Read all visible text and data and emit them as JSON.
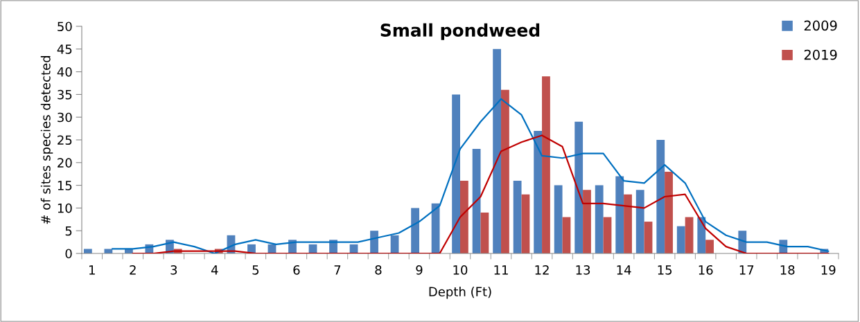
{
  "chart_data": {
    "type": "bar",
    "title": "Small pondweed",
    "xlabel": "Depth (Ft)",
    "ylabel": "# of sites species detected",
    "categories": [
      "1",
      null,
      "2",
      null,
      "3",
      null,
      "4",
      null,
      "5",
      null,
      "6",
      null,
      "7",
      null,
      "8",
      null,
      "9",
      null,
      "10",
      null,
      "11",
      null,
      "12",
      null,
      "13",
      null,
      "14",
      null,
      "15",
      null,
      "16",
      null,
      "17",
      null,
      "18",
      null,
      "19"
    ],
    "series": [
      {
        "name": "2009",
        "color": "#4f81bd",
        "values": [
          1,
          1,
          1,
          2,
          3,
          0,
          0,
          4,
          2,
          2,
          3,
          2,
          3,
          2,
          5,
          4,
          10,
          11,
          35,
          23,
          45,
          16,
          27,
          15,
          29,
          15,
          17,
          14,
          25,
          6,
          8,
          0,
          5,
          0,
          3,
          0,
          1
        ]
      },
      {
        "name": "2019",
        "color": "#c0504d",
        "values": [
          null,
          0,
          0,
          0,
          1,
          0,
          1,
          0,
          0,
          0,
          0,
          0,
          0,
          0,
          0,
          0,
          0,
          0,
          16,
          9,
          36,
          13,
          39,
          8,
          14,
          8,
          13,
          7,
          18,
          8,
          3,
          0,
          0,
          0,
          0,
          0,
          0
        ]
      },
      {
        "type": "line",
        "color": "#0070c0",
        "values": [
          null,
          1,
          1,
          1.5,
          2.5,
          1.5,
          0,
          2,
          3,
          2,
          2.5,
          2.5,
          2.5,
          2.5,
          3.5,
          4.5,
          7,
          10.5,
          23,
          29,
          34,
          30.5,
          21.5,
          21,
          22,
          22,
          16,
          15.5,
          19.5,
          15.5,
          7,
          4,
          2.5,
          2.5,
          1.5,
          1.5,
          0.5
        ]
      },
      {
        "type": "line",
        "color": "#c00000",
        "values": [
          null,
          null,
          0,
          0,
          0.5,
          0.5,
          0.5,
          0.5,
          0,
          0,
          0,
          0,
          0,
          0,
          0,
          0,
          0,
          0,
          8,
          12.5,
          22.5,
          24.5,
          26,
          23.5,
          11,
          11,
          10.5,
          10,
          12.5,
          13,
          5.5,
          1.5,
          0,
          0,
          0,
          0,
          0
        ]
      }
    ],
    "ylim": [
      0,
      50
    ],
    "yticks": [
      0,
      5,
      10,
      15,
      20,
      25,
      30,
      35,
      40,
      45,
      50
    ],
    "legend": "top right"
  }
}
